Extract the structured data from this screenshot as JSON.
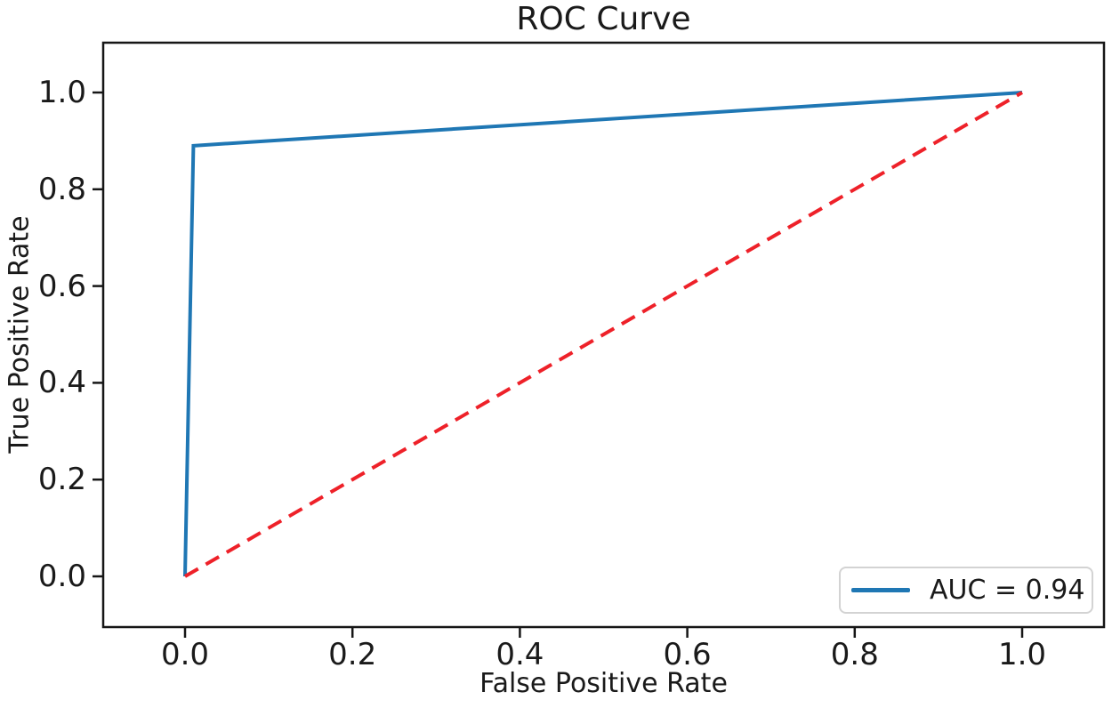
{
  "figure": {
    "background": "#ffffff",
    "frame_color": "#161616"
  },
  "chart_data": {
    "type": "line",
    "title": "ROC Curve",
    "xlabel": "False Positive Rate",
    "ylabel": "True Positive Rate",
    "xlim": [
      0.0,
      1.0
    ],
    "ylim": [
      0.0,
      1.0
    ],
    "xticks": [
      "0.0",
      "0.2",
      "0.4",
      "0.6",
      "0.8",
      "1.0"
    ],
    "yticks": [
      "0.0",
      "0.2",
      "0.4",
      "0.6",
      "0.8",
      "1.0"
    ],
    "grid": false,
    "legend_position": "lower right",
    "auc": 0.94,
    "series": [
      {
        "name": "roc-curve",
        "legend_label": "AUC = 0.94",
        "color": "#1f77b4",
        "style": "solid",
        "line_width": 4,
        "points": [
          [
            0.0,
            0.0
          ],
          [
            0.01,
            0.89
          ],
          [
            1.0,
            1.0
          ]
        ]
      },
      {
        "name": "chance-diagonal",
        "legend_label": null,
        "color": "#ee2129",
        "style": "dashed",
        "dash": [
          17,
          10
        ],
        "line_width": 4,
        "points": [
          [
            0.0,
            0.0
          ],
          [
            1.0,
            1.0
          ]
        ]
      }
    ]
  }
}
